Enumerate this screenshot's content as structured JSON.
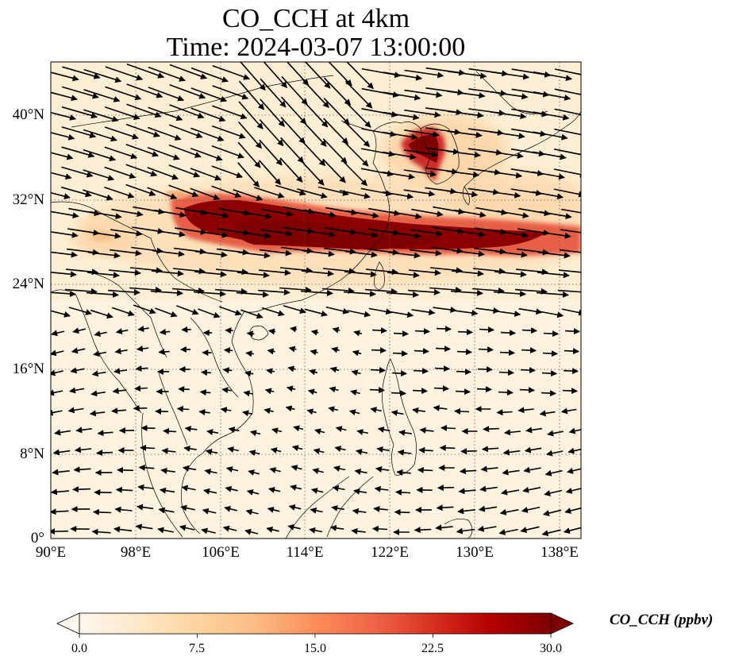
{
  "title_line1": "CO_CCH at 4km",
  "title_line2": "Time: 2024-03-07 13:00:00",
  "lat_labels": [
    "0°",
    "8°N",
    "16°N",
    "24°N",
    "32°N",
    "40°N"
  ],
  "lon_labels": [
    "90°E",
    "98°E",
    "106°E",
    "114°E",
    "122°E",
    "130°E",
    "138°E"
  ],
  "colorbar": {
    "label": "CO_CCH (ppbv)",
    "ticks": [
      "0.0",
      "7.5",
      "15.0",
      "22.5",
      "30.0"
    ],
    "min": 0,
    "max": 30,
    "extend": "both",
    "colormap": "OrRd",
    "colors": [
      "#fff7ec",
      "#fee8c8",
      "#fdd49e",
      "#fdbb84",
      "#fc8d59",
      "#ef6548",
      "#d7301f",
      "#b30000",
      "#7f0000"
    ]
  },
  "map_extent": {
    "lon_min": 90,
    "lon_max": 140,
    "lat_min": 0,
    "lat_max": 45
  },
  "gridlines": "dotted",
  "overlay": "wind vectors (arrows)",
  "plume": "CO_CCH plume ~27–32°N from 102°E to 140°E, branch over Korean Peninsula"
}
